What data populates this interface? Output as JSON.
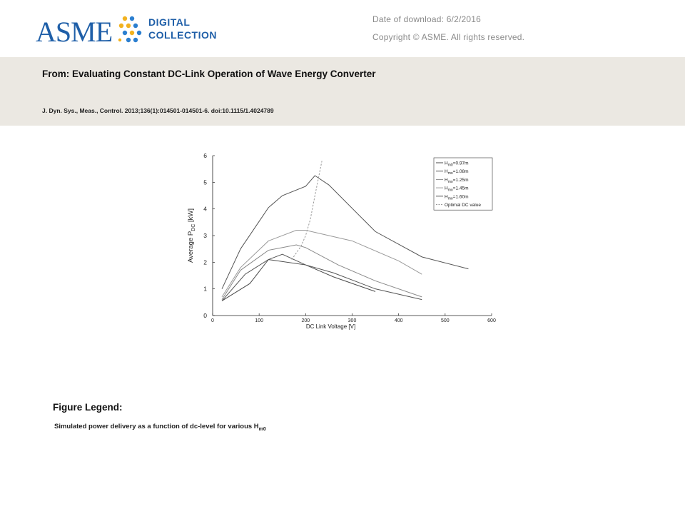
{
  "header": {
    "logo_text": "ASME",
    "logo_sub1": "DIGITAL",
    "logo_sub2": "COLLECTION",
    "download_label": "Date of download:",
    "download_date": "6/2/2016",
    "copyright": "Copyright © ASME. All rights reserved."
  },
  "article": {
    "from_line": "From: Evaluating Constant DC-Link Operation of Wave Energy Converter",
    "citation": "J. Dyn. Sys., Meas., Control. 2013;136(1):014501-014501-6. doi:10.1115/1.4024789"
  },
  "figure": {
    "legend_heading": "Figure Legend:",
    "caption_main": "Simulated power delivery as a function of dc-level for various H",
    "caption_sub": "m0"
  },
  "colors": {
    "band": "#ebe8e2",
    "asme_blue": "#1f5fa8",
    "dots_yellow": "#f2b21f",
    "dots_blue": "#2b7fd0"
  },
  "chart_data": {
    "type": "line",
    "xlabel": "DC Link Voltage [V]",
    "ylabel": "Average P_DC [kW]",
    "xlim": [
      0,
      600
    ],
    "ylim": [
      0,
      6
    ],
    "xticks": [
      0,
      100,
      200,
      300,
      400,
      500,
      600
    ],
    "yticks": [
      0,
      1,
      2,
      3,
      4,
      5,
      6
    ],
    "grid": false,
    "legend_position": "top-right",
    "series": [
      {
        "name": "H_m0=0.97m",
        "color": "#4a4a4a",
        "x": [
          20,
          80,
          120,
          200,
          260,
          350
        ],
        "y": [
          0.55,
          1.2,
          2.1,
          1.9,
          1.45,
          0.9
        ]
      },
      {
        "name": "H_mo=1.08m",
        "color": "#555555",
        "x": [
          20,
          70,
          120,
          150,
          200,
          260,
          350,
          450
        ],
        "y": [
          0.55,
          1.55,
          2.1,
          2.3,
          1.9,
          1.6,
          1.0,
          0.6
        ]
      },
      {
        "name": "H_mo=1.25m",
        "color": "#8a8a8a",
        "x": [
          20,
          60,
          120,
          180,
          200,
          270,
          350,
          450
        ],
        "y": [
          0.6,
          1.7,
          2.45,
          2.65,
          2.55,
          1.9,
          1.3,
          0.7
        ]
      },
      {
        "name": "H_mo=1.45m",
        "color": "#9a9a9a",
        "x": [
          20,
          60,
          120,
          180,
          200,
          300,
          400,
          450
        ],
        "y": [
          0.7,
          1.8,
          2.8,
          3.2,
          3.2,
          2.8,
          2.05,
          1.55
        ]
      },
      {
        "name": "H_mo=1.60m",
        "color": "#555555",
        "x": [
          20,
          60,
          120,
          150,
          200,
          220,
          250,
          350,
          450,
          550
        ],
        "y": [
          1.0,
          2.5,
          4.05,
          4.5,
          4.85,
          5.25,
          4.9,
          3.15,
          2.2,
          1.75
        ]
      },
      {
        "name": "Optimal DC value",
        "color": "#999999",
        "dashed": true,
        "x": [
          170,
          190,
          200,
          210,
          220,
          235
        ],
        "y": [
          2.1,
          2.6,
          3.0,
          3.6,
          4.5,
          5.8
        ]
      }
    ]
  }
}
